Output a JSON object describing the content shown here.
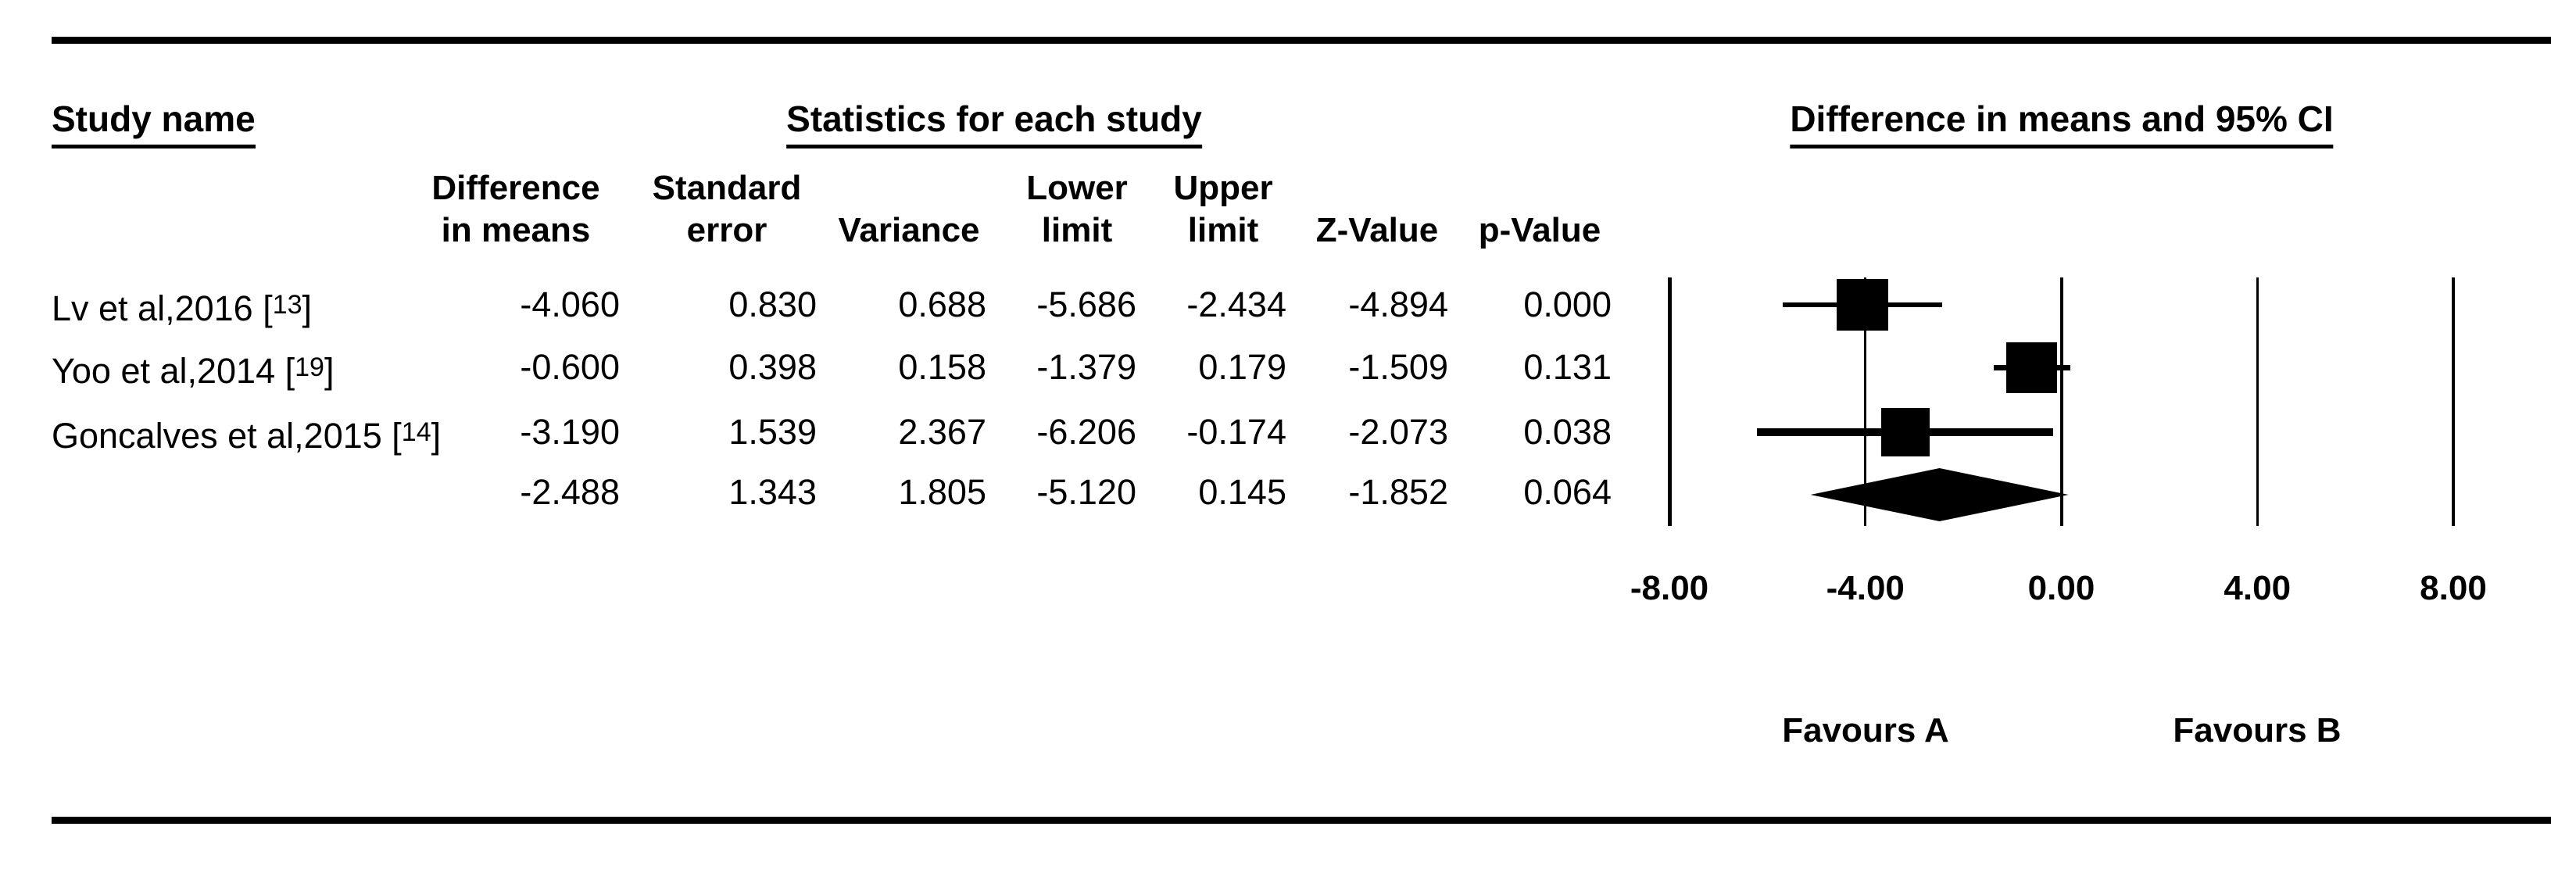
{
  "header": {
    "study_name": "Study name",
    "statistics": "Statistics for each study",
    "ci_header": "Difference in means and 95% CI"
  },
  "columns": [
    "Difference\nin means",
    "Standard\nerror",
    "Variance",
    "Lower\nlimit",
    "Upper\nlimit",
    "Z-Value",
    "p-Value"
  ],
  "rows": [
    {
      "study": "Lv et al,2016 ",
      "ref_open": "[",
      "ref_num": "13",
      "ref_close": "]",
      "diff": "-4.060",
      "se": "0.830",
      "var": "0.688",
      "lower": "-5.686",
      "upper": "-2.434",
      "z": "-4.894",
      "p": "0.000"
    },
    {
      "study": "Yoo et al,2014 ",
      "ref_open": "[",
      "ref_num": "19",
      "ref_close": "]",
      "diff": "-0.600",
      "se": "0.398",
      "var": "0.158",
      "lower": "-1.379",
      "upper": "0.179",
      "z": "-1.509",
      "p": "0.131"
    },
    {
      "study": "Goncalves et al,2015 ",
      "ref_open": "[",
      "ref_num": "14",
      "ref_close": "]",
      "diff": "-3.190",
      "se": "1.539",
      "var": "2.367",
      "lower": "-6.206",
      "upper": "-0.174",
      "z": "-2.073",
      "p": "0.038"
    },
    {
      "study": "",
      "ref_open": "",
      "ref_num": "",
      "ref_close": "",
      "diff": "-2.488",
      "se": "1.343",
      "var": "1.805",
      "lower": "-5.120",
      "upper": "0.145",
      "z": "-1.852",
      "p": "0.064"
    }
  ],
  "chart_data": {
    "type": "forest",
    "title": "Difference in means and 95% CI",
    "effect_measure": "Difference in means",
    "axis": {
      "min": -8,
      "max": 8,
      "tick_values": [
        -8,
        -4,
        0,
        4,
        8
      ],
      "ticks": [
        "-8.00",
        "-4.00",
        "0.00",
        "4.00",
        "8.00"
      ],
      "grid": false
    },
    "favours_a": "Favours A",
    "favours_b": "Favours B",
    "studies": [
      {
        "name": "Lv et al,2016 [13]",
        "point": -4.06,
        "lower": -5.686,
        "upper": -2.434,
        "marker_size": 66,
        "whisker": 6
      },
      {
        "name": "Yoo et al,2014 [19]",
        "point": -0.6,
        "lower": -1.379,
        "upper": 0.179,
        "marker_size": 65,
        "whisker": 7
      },
      {
        "name": "Goncalves et al,2015 [14]",
        "point": -3.19,
        "lower": -6.206,
        "upper": -0.174,
        "marker_size": 62,
        "whisker": 10
      }
    ],
    "summary": {
      "point": -2.488,
      "lower": -5.12,
      "upper": 0.145
    }
  }
}
